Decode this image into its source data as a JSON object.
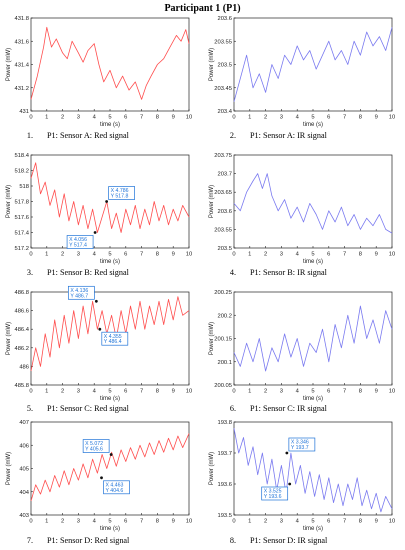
{
  "page": {
    "title": "Participant 1 (P1)"
  },
  "chart_data": [
    {
      "type": "line",
      "caption_number": "1.",
      "caption": "P1: Sensor A: Red signal",
      "color": "#ff4d4d",
      "xlabel": "time (s)",
      "ylabel": "Power (mW)",
      "xlim": [
        0,
        10
      ],
      "ylim": [
        431,
        431.8
      ],
      "xticks": [
        "0",
        "1",
        "2",
        "3",
        "4",
        "5",
        "6",
        "7",
        "8",
        "9",
        "10"
      ],
      "yticks": [
        "431",
        "431.2",
        "431.4",
        "431.6",
        "431.8"
      ],
      "series": [
        {
          "x": [
            0,
            0.4,
            0.8,
            1.0,
            1.3,
            1.6,
            2.0,
            2.3,
            2.6,
            3.0,
            3.3,
            3.6,
            4.0,
            4.3,
            4.6,
            5.0,
            5.4,
            5.8,
            6.2,
            6.6,
            7.0,
            7.3,
            7.6,
            8.0,
            8.4,
            8.8,
            9.2,
            9.5,
            9.8,
            10
          ],
          "y": [
            431.1,
            431.3,
            431.55,
            431.72,
            431.55,
            431.62,
            431.5,
            431.45,
            431.6,
            431.5,
            431.42,
            431.52,
            431.58,
            431.4,
            431.25,
            431.35,
            431.2,
            431.3,
            431.18,
            431.25,
            431.1,
            431.22,
            431.3,
            431.4,
            431.45,
            431.55,
            431.65,
            431.6,
            431.7,
            431.58
          ]
        }
      ],
      "annotations": []
    },
    {
      "type": "line",
      "caption_number": "2.",
      "caption": "P1: Sensor A: IR signal",
      "color": "#7a7af0",
      "xlabel": "time (s)",
      "ylabel": "Power (mW)",
      "xlim": [
        0,
        10
      ],
      "ylim": [
        203.4,
        203.6
      ],
      "xticks": [
        "0",
        "1",
        "2",
        "3",
        "4",
        "5",
        "6",
        "7",
        "8",
        "9",
        "10"
      ],
      "yticks": [
        "203.4",
        "203.45",
        "203.5",
        "203.55",
        "203.6"
      ],
      "series": [
        {
          "x": [
            0,
            0.4,
            0.8,
            1.2,
            1.6,
            2.0,
            2.4,
            2.8,
            3.2,
            3.6,
            4.0,
            4.4,
            4.8,
            5.2,
            5.6,
            6.0,
            6.4,
            6.8,
            7.2,
            7.6,
            8.0,
            8.4,
            8.8,
            9.2,
            9.6,
            10
          ],
          "y": [
            203.42,
            203.47,
            203.52,
            203.45,
            203.48,
            203.44,
            203.5,
            203.47,
            203.52,
            203.5,
            203.54,
            203.51,
            203.53,
            203.49,
            203.52,
            203.55,
            203.51,
            203.53,
            203.5,
            203.55,
            203.52,
            203.57,
            203.54,
            203.56,
            203.53,
            203.58
          ]
        }
      ],
      "annotations": []
    },
    {
      "type": "line",
      "caption_number": "3.",
      "caption": "P1: Sensor B: Red signal",
      "color": "#ff4d4d",
      "xlabel": "time (s)",
      "ylabel": "Power (mW)",
      "xlim": [
        0,
        10
      ],
      "ylim": [
        517.2,
        518.4
      ],
      "xticks": [
        "0",
        "1",
        "2",
        "3",
        "4",
        "5",
        "6",
        "7",
        "8",
        "9",
        "10"
      ],
      "yticks": [
        "517.2",
        "517.4",
        "517.6",
        "517.8",
        "518",
        "518.2",
        "518.4"
      ],
      "series": [
        {
          "x": [
            0,
            0.3,
            0.6,
            0.9,
            1.2,
            1.5,
            1.8,
            2.1,
            2.4,
            2.7,
            3.0,
            3.3,
            3.6,
            3.9,
            4.2,
            4.5,
            4.8,
            5.1,
            5.4,
            5.7,
            6.0,
            6.3,
            6.6,
            6.9,
            7.2,
            7.5,
            7.8,
            8.1,
            8.4,
            8.7,
            9.0,
            9.3,
            9.6,
            10
          ],
          "y": [
            518.1,
            518.3,
            517.9,
            518.05,
            517.75,
            517.95,
            517.6,
            517.9,
            517.55,
            517.8,
            517.5,
            517.75,
            517.45,
            517.7,
            517.4,
            517.6,
            517.8,
            517.45,
            517.65,
            517.4,
            517.7,
            517.5,
            517.75,
            517.45,
            517.7,
            517.5,
            517.8,
            517.55,
            517.75,
            517.5,
            517.7,
            517.55,
            517.75,
            517.6
          ]
        }
      ],
      "annotations": [
        {
          "x": 4.786,
          "y": 517.8,
          "x_text": "X 4.786",
          "y_text": "Y 517.8",
          "side": "above-right"
        },
        {
          "x": 4.056,
          "y": 517.4,
          "x_text": "X 4.056",
          "y_text": "Y 517.4",
          "side": "below-left"
        }
      ]
    },
    {
      "type": "line",
      "caption_number": "4.",
      "caption": "P1: Sensor B: IR signal",
      "color": "#7a7af0",
      "xlabel": "time (s)",
      "ylabel": "Power (mW)",
      "xlim": [
        0,
        10
      ],
      "ylim": [
        203.5,
        203.75
      ],
      "xticks": [
        "0",
        "1",
        "2",
        "3",
        "4",
        "5",
        "6",
        "7",
        "8",
        "9",
        "10"
      ],
      "yticks": [
        "203.5",
        "203.55",
        "203.6",
        "203.65",
        "203.7",
        "203.75"
      ],
      "series": [
        {
          "x": [
            0,
            0.4,
            0.8,
            1.2,
            1.5,
            1.8,
            2.1,
            2.4,
            2.8,
            3.2,
            3.6,
            4.0,
            4.4,
            4.8,
            5.2,
            5.6,
            6.0,
            6.4,
            6.8,
            7.2,
            7.6,
            8.0,
            8.4,
            8.8,
            9.2,
            9.6,
            10
          ],
          "y": [
            203.62,
            203.6,
            203.65,
            203.68,
            203.7,
            203.66,
            203.7,
            203.64,
            203.6,
            203.63,
            203.58,
            203.61,
            203.57,
            203.62,
            203.59,
            203.55,
            203.6,
            203.57,
            203.61,
            203.56,
            203.59,
            203.55,
            203.58,
            203.56,
            203.59,
            203.55,
            203.54
          ]
        }
      ],
      "annotations": []
    },
    {
      "type": "line",
      "caption_number": "5.",
      "caption": "P1: Sensor C: Red signal",
      "color": "#ff4d4d",
      "xlabel": "time (s)",
      "ylabel": "Power (mW)",
      "xlim": [
        0,
        10
      ],
      "ylim": [
        485.8,
        486.8
      ],
      "xticks": [
        "0",
        "1",
        "2",
        "3",
        "4",
        "5",
        "6",
        "7",
        "8",
        "9",
        "10"
      ],
      "yticks": [
        "485.8",
        "486",
        "486.2",
        "486.4",
        "486.6",
        "486.8"
      ],
      "series": [
        {
          "x": [
            0,
            0.3,
            0.6,
            0.9,
            1.2,
            1.5,
            1.8,
            2.1,
            2.4,
            2.7,
            3.0,
            3.3,
            3.6,
            3.9,
            4.2,
            4.5,
            4.8,
            5.1,
            5.4,
            5.7,
            6.0,
            6.3,
            6.6,
            6.9,
            7.2,
            7.5,
            7.8,
            8.1,
            8.4,
            8.7,
            9.0,
            9.3,
            9.6,
            10
          ],
          "y": [
            485.95,
            486.2,
            486.0,
            486.35,
            486.1,
            486.5,
            486.2,
            486.55,
            486.25,
            486.6,
            486.3,
            486.65,
            486.35,
            486.7,
            486.4,
            486.6,
            486.35,
            486.55,
            486.3,
            486.6,
            486.35,
            486.65,
            486.4,
            486.7,
            486.4,
            486.65,
            486.45,
            486.7,
            486.45,
            486.72,
            486.5,
            486.75,
            486.55,
            486.6
          ]
        }
      ],
      "annotations": [
        {
          "x": 4.136,
          "y": 486.7,
          "x_text": "X 4.136",
          "y_text": "Y 486.7",
          "side": "above-left"
        },
        {
          "x": 4.355,
          "y": 486.4,
          "x_text": "X 4.355",
          "y_text": "Y 486.4",
          "side": "below-right"
        }
      ]
    },
    {
      "type": "line",
      "caption_number": "6.",
      "caption": "P1: Sensor C: IR signal",
      "color": "#7a7af0",
      "xlabel": "time (s)",
      "ylabel": "Power (mW)",
      "xlim": [
        0,
        10
      ],
      "ylim": [
        200.05,
        200.25
      ],
      "xticks": [
        "0",
        "1",
        "2",
        "3",
        "4",
        "5",
        "6",
        "7",
        "8",
        "9",
        "10"
      ],
      "yticks": [
        "200.05",
        "200.1",
        "200.15",
        "200.2",
        "200.25"
      ],
      "series": [
        {
          "x": [
            0,
            0.4,
            0.8,
            1.2,
            1.6,
            2.0,
            2.4,
            2.8,
            3.2,
            3.6,
            4.0,
            4.4,
            4.8,
            5.2,
            5.6,
            6.0,
            6.4,
            6.8,
            7.2,
            7.6,
            8.0,
            8.4,
            8.8,
            9.2,
            9.6,
            10
          ],
          "y": [
            200.12,
            200.09,
            200.14,
            200.1,
            200.15,
            200.08,
            200.13,
            200.1,
            200.16,
            200.11,
            200.15,
            200.09,
            200.14,
            200.12,
            200.17,
            200.1,
            200.18,
            200.13,
            200.2,
            200.14,
            200.22,
            200.15,
            200.19,
            200.14,
            200.21,
            200.17
          ]
        }
      ],
      "annotations": []
    },
    {
      "type": "line",
      "caption_number": "7.",
      "caption": "P1: Sensor D: Red signal",
      "color": "#ff4d4d",
      "xlabel": "time (s)",
      "ylabel": "Power (mW)",
      "xlim": [
        0,
        10
      ],
      "ylim": [
        403,
        407
      ],
      "xticks": [
        "0",
        "1",
        "2",
        "3",
        "4",
        "5",
        "6",
        "7",
        "8",
        "9",
        "10"
      ],
      "yticks": [
        "403",
        "404",
        "405",
        "406",
        "407"
      ],
      "series": [
        {
          "x": [
            0,
            0.3,
            0.6,
            0.9,
            1.2,
            1.5,
            1.8,
            2.1,
            2.4,
            2.7,
            3.0,
            3.3,
            3.6,
            3.9,
            4.2,
            4.5,
            4.8,
            5.1,
            5.4,
            5.7,
            6.0,
            6.3,
            6.6,
            6.9,
            7.2,
            7.5,
            7.8,
            8.1,
            8.4,
            8.7,
            9.0,
            9.3,
            9.6,
            10
          ],
          "y": [
            403.6,
            404.3,
            403.9,
            404.5,
            404.0,
            404.7,
            404.2,
            404.9,
            404.3,
            405.0,
            404.5,
            405.2,
            404.6,
            405.4,
            404.8,
            405.6,
            405.0,
            405.7,
            405.1,
            405.8,
            405.3,
            405.9,
            405.4,
            406.0,
            405.5,
            406.1,
            405.6,
            406.2,
            405.7,
            406.3,
            405.8,
            406.4,
            405.9,
            406.5
          ]
        }
      ],
      "annotations": [
        {
          "x": 5.072,
          "y": 405.6,
          "x_text": "X 5.072",
          "y_text": "Y 405.6",
          "side": "above-left"
        },
        {
          "x": 4.463,
          "y": 404.6,
          "x_text": "X 4.463",
          "y_text": "Y 404.6",
          "side": "below-right"
        }
      ]
    },
    {
      "type": "line",
      "caption_number": "8.",
      "caption": "P1: Sensor D: IR signal",
      "color": "#7a7af0",
      "xlabel": "time (s)",
      "ylabel": "Power (mW)",
      "xlim": [
        0,
        10
      ],
      "ylim": [
        193.5,
        193.8
      ],
      "xticks": [
        "0",
        "1",
        "2",
        "3",
        "4",
        "5",
        "6",
        "7",
        "8",
        "9",
        "10"
      ],
      "yticks": [
        "193.5",
        "193.6",
        "193.7",
        "193.8"
      ],
      "series": [
        {
          "x": [
            0,
            0.3,
            0.6,
            0.9,
            1.2,
            1.5,
            1.8,
            2.1,
            2.4,
            2.7,
            3.0,
            3.3,
            3.6,
            3.9,
            4.2,
            4.5,
            4.8,
            5.1,
            5.4,
            5.7,
            6.0,
            6.3,
            6.6,
            6.9,
            7.2,
            7.5,
            7.8,
            8.1,
            8.4,
            8.7,
            9.0,
            9.3,
            9.6,
            10
          ],
          "y": [
            193.78,
            193.7,
            193.75,
            193.66,
            193.72,
            193.63,
            193.7,
            193.6,
            193.68,
            193.58,
            193.66,
            193.57,
            193.7,
            193.6,
            193.66,
            193.57,
            193.64,
            193.56,
            193.63,
            193.55,
            193.62,
            193.54,
            193.6,
            193.53,
            193.6,
            193.55,
            193.62,
            193.53,
            193.58,
            193.52,
            193.57,
            193.51,
            193.56,
            193.52
          ]
        }
      ],
      "annotations": [
        {
          "x": 3.346,
          "y": 193.7,
          "x_text": "X 3.346",
          "y_text": "Y 193.7",
          "side": "above-right"
        },
        {
          "x": 3.525,
          "y": 193.6,
          "x_text": "X 3.525",
          "y_text": "Y 193.6",
          "side": "below-left"
        }
      ]
    }
  ]
}
